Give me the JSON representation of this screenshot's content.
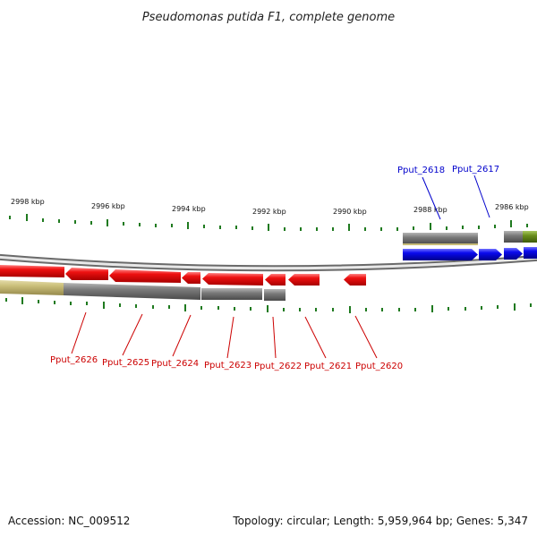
{
  "header": {
    "title": "Pseudomonas putida F1, complete genome"
  },
  "scale": {
    "unit_labels": [
      "2998 kbp",
      "2996 kbp",
      "2994 kbp",
      "2992 kbp",
      "2990 kbp",
      "2988 kbp",
      "2986 kbp"
    ]
  },
  "genes": {
    "reverse_strand": [
      "Pput_2626",
      "Pput_2625",
      "Pput_2624",
      "Pput_2623",
      "Pput_2622",
      "Pput_2621",
      "Pput_2620"
    ],
    "forward_strand": [
      "Pput_2618",
      "Pput_2617"
    ]
  },
  "footer": {
    "accession": "Accession: NC_009512",
    "summary": "Topology: circular; Length: 5,959,964 bp; Genes: 5,347"
  },
  "colors": {
    "reverse_gene": "#ee1111",
    "forward_gene": "#0a0aee",
    "track_gray": "#7a7a7a",
    "track_khaki": "#c8bd78",
    "track_green": "#6a8e1c",
    "tick_green": "#1f7a1f",
    "red_label": "#cc0000",
    "blue_label": "#0000cc"
  }
}
